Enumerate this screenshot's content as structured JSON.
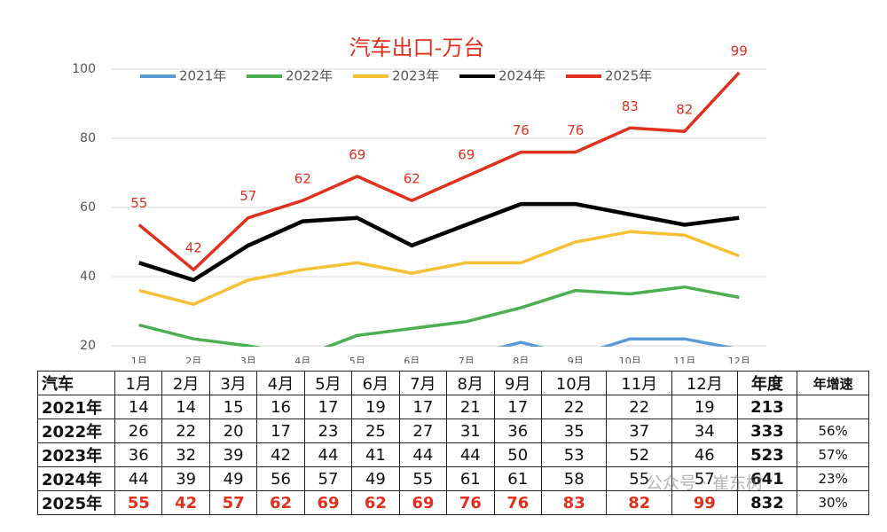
{
  "chart_data": {
    "type": "line",
    "title": "汽车出口-万台",
    "categories": [
      "1月",
      "2月",
      "3月",
      "4月",
      "5月",
      "6月",
      "7月",
      "8月",
      "9月",
      "10月",
      "11月",
      "12月"
    ],
    "ylim": [
      20,
      100
    ],
    "yticks": [
      20,
      40,
      60,
      80,
      100
    ],
    "grid": true,
    "legend": "top",
    "series": [
      {
        "name": "2021年",
        "color": "#5b9bd5",
        "values": [
          14,
          14,
          15,
          16,
          17,
          19,
          17,
          21,
          17,
          22,
          22,
          19
        ]
      },
      {
        "name": "2022年",
        "color": "#4caf50",
        "values": [
          26,
          22,
          20,
          17,
          23,
          25,
          27,
          31,
          36,
          35,
          37,
          34
        ]
      },
      {
        "name": "2023年",
        "color": "#f5c033",
        "values": [
          36,
          32,
          39,
          42,
          44,
          41,
          44,
          44,
          50,
          53,
          52,
          46
        ]
      },
      {
        "name": "2024年",
        "color": "#000000",
        "values": [
          44,
          39,
          49,
          56,
          57,
          49,
          55,
          61,
          61,
          58,
          55,
          57
        ]
      },
      {
        "name": "2025年",
        "color": "#e0301e",
        "values": [
          55,
          42,
          57,
          62,
          69,
          62,
          69,
          76,
          76,
          83,
          82,
          99
        ],
        "data_labels": true
      }
    ]
  },
  "table": {
    "corner": "汽车",
    "total_header": "年度",
    "growth_header": "年增速",
    "totals": [
      213,
      333,
      523,
      641,
      832
    ],
    "growth": [
      null,
      "56%",
      "57%",
      "23%",
      "30%"
    ]
  },
  "watermark": "公众号 · 崔东树"
}
